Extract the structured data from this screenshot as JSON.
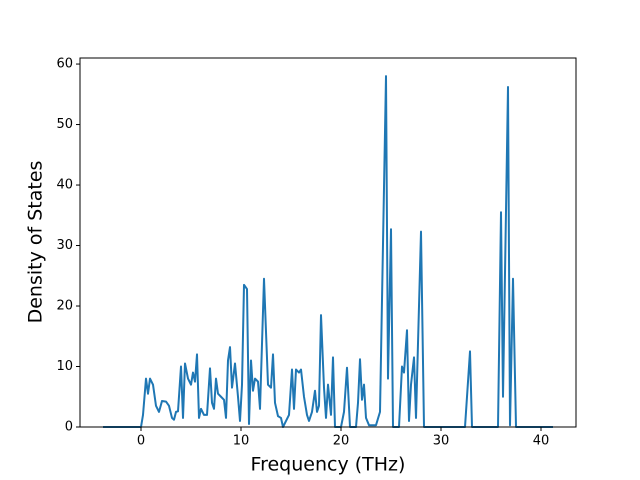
{
  "chart_data": {
    "type": "line",
    "xlabel": "Frequency (THz)",
    "ylabel": "Density of States",
    "xlim": [
      -6.1,
      43.5
    ],
    "ylim": [
      0,
      61
    ],
    "xticks": [
      0,
      10,
      20,
      30,
      40
    ],
    "yticks": [
      0,
      10,
      20,
      30,
      40,
      50,
      60
    ],
    "series": [
      {
        "color": "#1f77b4",
        "x": [
          -3.8,
          0,
          0.2,
          0.5,
          0.7,
          0.9,
          1.2,
          1.5,
          1.8,
          2.1,
          2.5,
          2.8,
          3.1,
          3.3,
          3.5,
          3.7,
          4.0,
          4.2,
          4.4,
          4.7,
          5.0,
          5.2,
          5.4,
          5.6,
          5.8,
          6.0,
          6.3,
          6.6,
          6.9,
          7.1,
          7.3,
          7.5,
          7.7,
          8.0,
          8.3,
          8.5,
          8.7,
          8.9,
          9.1,
          9.4,
          9.7,
          9.9,
          10.1,
          10.3,
          10.6,
          10.8,
          11.0,
          11.2,
          11.4,
          11.7,
          11.9,
          12.3,
          12.7,
          13.0,
          13.2,
          13.4,
          13.7,
          14.0,
          14.2,
          14.8,
          15.1,
          15.3,
          15.5,
          15.8,
          16.0,
          16.3,
          16.6,
          16.8,
          17.1,
          17.4,
          17.6,
          17.8,
          18.0,
          18.3,
          18.5,
          18.7,
          19.0,
          19.2,
          19.4,
          20.0,
          20.3,
          20.6,
          20.9,
          21.5,
          21.7,
          21.9,
          22.1,
          22.3,
          22.5,
          22.8,
          23.5,
          23.9,
          24.5,
          24.7,
          25.0,
          25.2,
          25.8,
          26.1,
          26.3,
          26.6,
          26.8,
          27.0,
          27.3,
          27.5,
          28.0,
          28.3,
          32.4,
          32.9,
          33.1,
          35.7,
          36.0,
          36.2,
          36.7,
          36.9,
          37.2,
          37.5,
          41.2
        ],
        "values": [
          0,
          0,
          2,
          8,
          5.5,
          8,
          7,
          3.5,
          2.5,
          4.3,
          4.2,
          3.5,
          1.5,
          1.2,
          2.5,
          2.6,
          10,
          1.5,
          10.5,
          8,
          7,
          9,
          7.5,
          12,
          1.5,
          3,
          2,
          2,
          9.7,
          4,
          3,
          8,
          5.5,
          5,
          4.5,
          1.5,
          11,
          13.2,
          6.5,
          10.5,
          5,
          1,
          7,
          23.5,
          22.8,
          0.5,
          11,
          6,
          8,
          7.5,
          3,
          24.5,
          7,
          6.5,
          12,
          4,
          1.8,
          1.5,
          0,
          2,
          9.5,
          3,
          9.5,
          9,
          9.5,
          5,
          2,
          1,
          2.5,
          6,
          2.5,
          3.5,
          18.5,
          6.5,
          1.5,
          7,
          2,
          11.5,
          0,
          0,
          2.5,
          9.8,
          0,
          0,
          4,
          11.2,
          4.5,
          7,
          1.5,
          0.3,
          0.3,
          2.5,
          58,
          8,
          32.7,
          0,
          0,
          10,
          9,
          16,
          1,
          7,
          11.5,
          1.5,
          32.3,
          0,
          0,
          12.5,
          0,
          0,
          35.5,
          5,
          56.2,
          0.3,
          24.5,
          0,
          0
        ]
      }
    ]
  }
}
